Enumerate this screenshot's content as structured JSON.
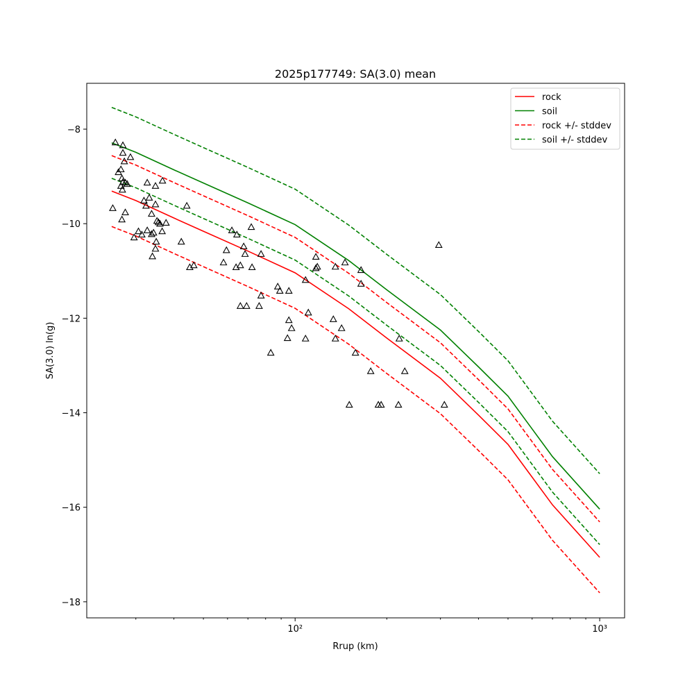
{
  "chart_data": {
    "type": "line",
    "title": "2025p177749: SA(3.0) mean",
    "xlabel": "Rrup (km)",
    "ylabel": "SA(3.0) ln(g)",
    "xscale": "log",
    "xlim": [
      20.7,
      1207
    ],
    "ylim": [
      -18.34,
      -7.03
    ],
    "xticks": [
      {
        "value": 100,
        "label": "10²"
      },
      {
        "value": 1000,
        "label": "10³"
      }
    ],
    "xminorticks": [
      30,
      40,
      50,
      60,
      70,
      80,
      90,
      200,
      300,
      400,
      500,
      600,
      700,
      800,
      900
    ],
    "yticks": [
      {
        "value": -8,
        "label": "−8"
      },
      {
        "value": -10,
        "label": "−10"
      },
      {
        "value": -12,
        "label": "−12"
      },
      {
        "value": -14,
        "label": "−14"
      },
      {
        "value": -16,
        "label": "−16"
      },
      {
        "value": -18,
        "label": "−18"
      }
    ],
    "legend": "upper right",
    "x": [
      25,
      30,
      40,
      50,
      70,
      100,
      150,
      200,
      300,
      400,
      500,
      700,
      1000
    ],
    "series": [
      {
        "name": "rock",
        "color": "#ff0000",
        "dashed": false,
        "values": [
          -9.31,
          -9.51,
          -9.88,
          -10.16,
          -10.58,
          -11.04,
          -11.8,
          -12.42,
          -13.27,
          -14.05,
          -14.67,
          -15.95,
          -17.06
        ]
      },
      {
        "name": "soil",
        "color": "#008000",
        "dashed": false,
        "values": [
          -8.29,
          -8.49,
          -8.86,
          -9.14,
          -9.56,
          -10.02,
          -10.78,
          -11.4,
          -12.25,
          -13.03,
          -13.65,
          -14.93,
          -16.04
        ]
      },
      {
        "name": "rock +/- stddev",
        "color": "#ff0000",
        "dashed": true,
        "upper": [
          -8.56,
          -8.76,
          -9.13,
          -9.41,
          -9.83,
          -10.29,
          -11.05,
          -11.67,
          -12.52,
          -13.3,
          -13.92,
          -15.2,
          -16.31
        ],
        "lower": [
          -10.06,
          -10.26,
          -10.63,
          -10.91,
          -11.33,
          -11.79,
          -12.55,
          -13.17,
          -14.02,
          -14.8,
          -15.42,
          -16.7,
          -17.81
        ]
      },
      {
        "name": "soil +/- stddev",
        "color": "#008000",
        "dashed": true,
        "upper": [
          -7.54,
          -7.74,
          -8.11,
          -8.39,
          -8.81,
          -9.27,
          -10.03,
          -10.65,
          -11.5,
          -12.28,
          -12.9,
          -14.18,
          -15.29
        ],
        "lower": [
          -9.04,
          -9.24,
          -9.61,
          -9.89,
          -10.31,
          -10.77,
          -11.53,
          -12.15,
          -13.0,
          -13.78,
          -14.4,
          -15.68,
          -16.79
        ]
      }
    ],
    "scatter": {
      "marker": "triangle",
      "color": "#000000",
      "x": [
        25.7,
        27.2,
        28.8,
        26.3,
        26.8,
        27.5,
        27.2,
        27.0,
        27.2,
        26.8,
        27.1,
        27.7,
        28.1,
        25.2,
        27.0,
        27.7,
        29.6,
        30.6,
        31.4,
        31.9,
        32.4,
        32.7,
        33.2,
        33.8,
        34.8,
        34.8,
        36.7,
        32.7,
        33.8,
        34.3,
        35.2,
        35.6,
        36.0,
        36.6,
        37.7,
        35.0,
        34.8,
        34.0,
        42.3,
        44.1,
        45.1,
        46.5,
        58.2,
        59.5,
        62.0,
        64.4,
        67.8,
        66.1,
        64.0,
        68.5,
        71.8,
        77.3,
        72.2,
        66.1,
        69.3,
        76.2,
        77.3,
        87.7,
        89.1,
        95.4,
        83.2,
        94.4,
        95.4,
        97.4,
        108.2,
        110.5,
        108.2,
        117.0,
        118.3,
        117.0,
        133.5,
        135.6,
        142.1,
        135.6,
        145.8,
        164.6,
        164.6,
        157.8,
        177.1,
        150.6,
        187.6,
        191.6,
        218.4,
        219.7,
        229.1,
        296.3,
        309
      ],
      "y": [
        -8.28,
        -8.34,
        -8.59,
        -8.91,
        -8.85,
        -8.68,
        -8.5,
        -9.04,
        -9.12,
        -9.2,
        -9.28,
        -9.13,
        -9.16,
        -9.67,
        -9.91,
        -9.76,
        -10.29,
        -10.16,
        -10.23,
        -9.51,
        -9.62,
        -9.13,
        -9.45,
        -9.79,
        -9.59,
        -9.2,
        -9.09,
        -10.14,
        -10.22,
        -10.19,
        -9.94,
        -9.97,
        -10.0,
        -10.16,
        -9.98,
        -10.38,
        -10.53,
        -10.69,
        -10.38,
        -9.62,
        -10.92,
        -10.88,
        -10.82,
        -10.56,
        -10.14,
        -10.23,
        -10.48,
        -10.88,
        -10.92,
        -10.64,
        -10.07,
        -10.64,
        -10.92,
        -11.74,
        -11.74,
        -11.74,
        -11.52,
        -11.33,
        -11.42,
        -11.42,
        -12.73,
        -12.42,
        -12.04,
        -12.21,
        -12.43,
        -11.88,
        -11.19,
        -10.7,
        -10.91,
        -10.94,
        -12.02,
        -12.43,
        -12.21,
        -10.91,
        -10.82,
        -10.98,
        -11.27,
        -12.73,
        -13.12,
        -13.83,
        -13.83,
        -13.83,
        -13.83,
        -12.43,
        -13.12,
        -10.45,
        -13.83
      ]
    }
  }
}
